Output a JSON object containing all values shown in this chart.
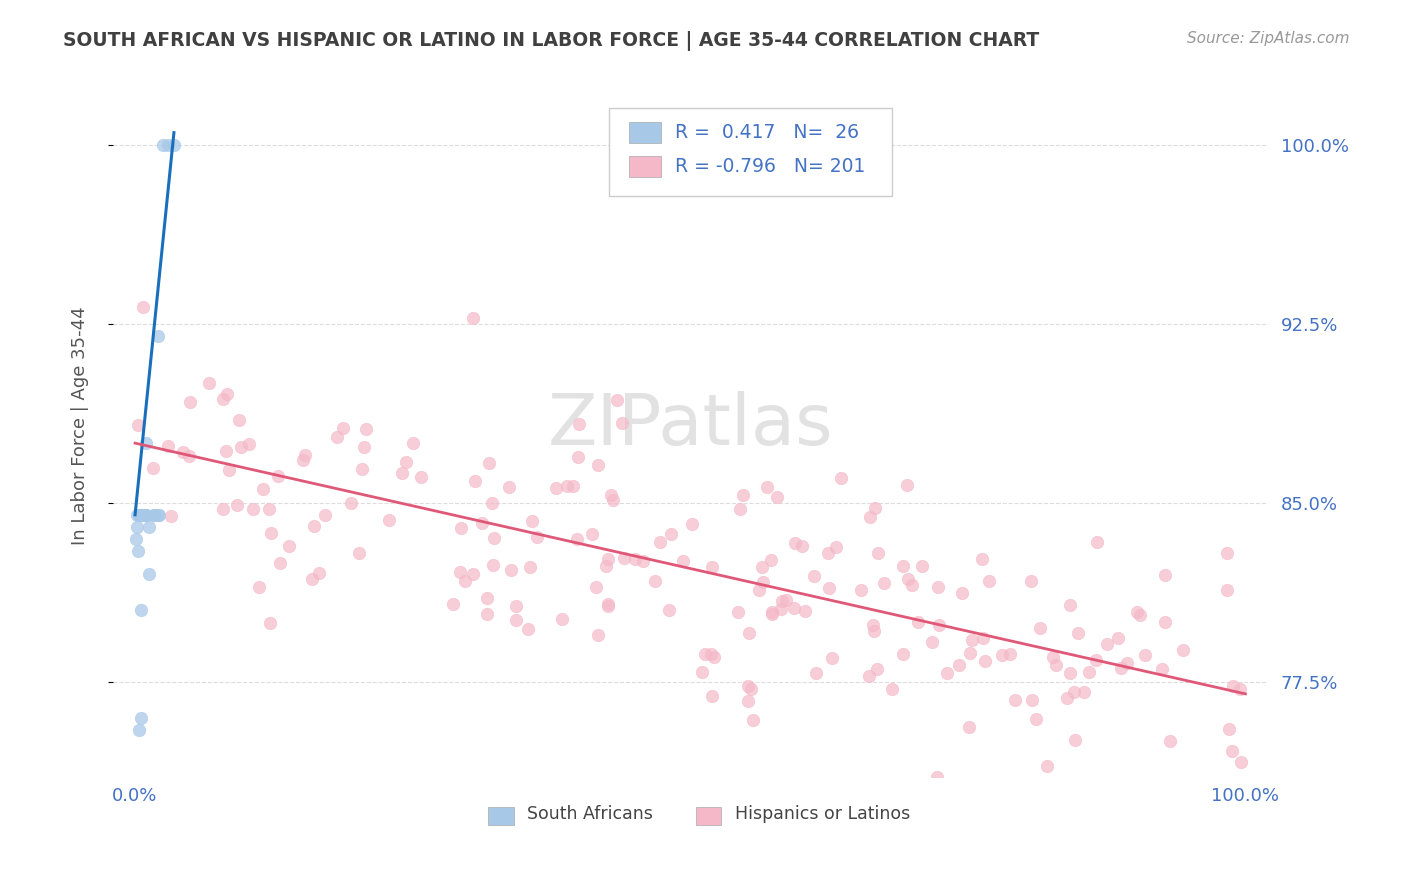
{
  "title": "SOUTH AFRICAN VS HISPANIC OR LATINO IN LABOR FORCE | AGE 35-44 CORRELATION CHART",
  "source": "Source: ZipAtlas.com",
  "ylabel": "In Labor Force | Age 35-44",
  "xlim_min": -0.02,
  "xlim_max": 1.02,
  "ylim_min": 0.735,
  "ylim_max": 1.03,
  "yticks": [
    0.775,
    0.85,
    0.925,
    1.0
  ],
  "ytick_labels": [
    "77.5%",
    "85.0%",
    "92.5%",
    "100.0%"
  ],
  "xticks": [
    0.0,
    1.0
  ],
  "xtick_labels": [
    "0.0%",
    "100.0%"
  ],
  "blue_color": "#a8c8e8",
  "pink_color": "#f4b8c8",
  "blue_line_color": "#1a6fbd",
  "pink_line_color": "#e05878",
  "legend_R1": "0.417",
  "legend_N1": "26",
  "legend_R2": "-0.796",
  "legend_N2": "201",
  "watermark": "ZIPatlas",
  "background_color": "#ffffff",
  "grid_color": "#dddddd",
  "axis_label_color": "#4472c4",
  "title_color": "#404040",
  "ylabel_color": "#555555"
}
